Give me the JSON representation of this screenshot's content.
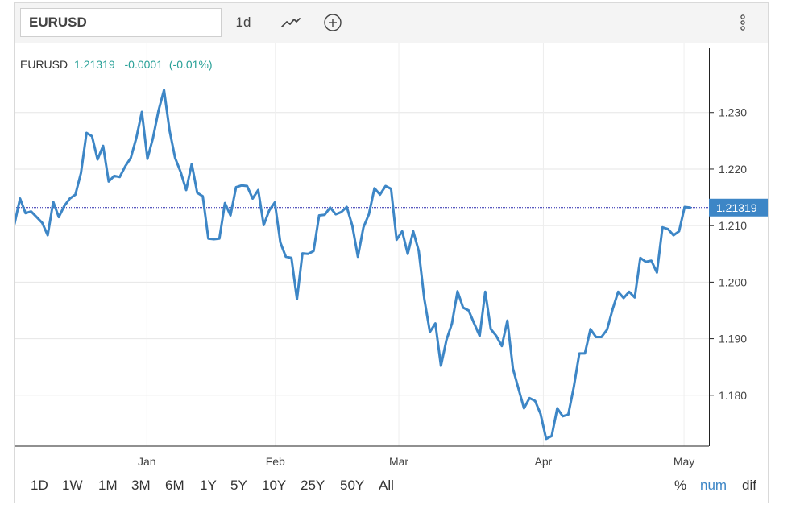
{
  "toolbar": {
    "symbol_value": "EURUSD",
    "interval_label": "1d",
    "chart_type_icon": "line-chart-icon",
    "compare_icon": "plus-circle-icon",
    "more_icon": "vertical-ellipsis-icon"
  },
  "legend": {
    "symbol": "EURUSD",
    "price": "1.21319",
    "change": "-0.0001",
    "change_pct": "(-0.01%)"
  },
  "price_tag": "1.21319",
  "ranges": [
    "1D",
    "1W",
    "1M",
    "3M",
    "6M",
    "1Y",
    "5Y",
    "10Y",
    "25Y",
    "50Y",
    "All"
  ],
  "modes": [
    "%",
    "num",
    "dif"
  ],
  "active_mode": "num",
  "colors": {
    "line": "#3d86c6",
    "up": "#2aa198",
    "tag_bg": "#3d86c6",
    "active_mode": "#3d86c6",
    "last_price_line": "#2222aa"
  },
  "chart_data": {
    "type": "line",
    "title": "",
    "xlabel": "",
    "ylabel": "",
    "ylim": [
      1.171,
      1.2415
    ],
    "yticks": [
      1.18,
      1.19,
      1.2,
      1.21,
      1.22,
      1.23
    ],
    "ytick_labels": [
      "1.180",
      "1.190",
      "1.200",
      "1.210",
      "1.220",
      "1.230"
    ],
    "xticks": [
      {
        "label": "Jan",
        "x": 23.9
      },
      {
        "label": "Feb",
        "x": 47.1
      },
      {
        "label": "Mar",
        "x": 69.4
      },
      {
        "label": "Apr",
        "x": 95.5
      },
      {
        "label": "May",
        "x": 120.9
      }
    ],
    "xlim": [
      0,
      125.4
    ],
    "grid": true,
    "last_value": 1.21319,
    "series": [
      {
        "values": [
          [
            0,
            1.2103
          ],
          [
            1,
            1.2148
          ],
          [
            2,
            1.2122
          ],
          [
            3,
            1.2125
          ],
          [
            4,
            1.2115
          ],
          [
            5,
            1.2105
          ],
          [
            6,
            1.2083
          ],
          [
            7,
            1.2142
          ],
          [
            8,
            1.2115
          ],
          [
            9,
            1.2135
          ],
          [
            10,
            1.2148
          ],
          [
            11,
            1.2155
          ],
          [
            12,
            1.2193
          ],
          [
            13,
            1.2264
          ],
          [
            14,
            1.2258
          ],
          [
            15,
            1.2217
          ],
          [
            16,
            1.2241
          ],
          [
            17,
            1.2178
          ],
          [
            18,
            1.2188
          ],
          [
            19,
            1.2186
          ],
          [
            20,
            1.2205
          ],
          [
            21,
            1.222
          ],
          [
            22,
            1.2255
          ],
          [
            23,
            1.2301
          ],
          [
            24,
            1.2218
          ],
          [
            25,
            1.2255
          ],
          [
            26,
            1.2303
          ],
          [
            27,
            1.234
          ],
          [
            28,
            1.2268
          ],
          [
            29,
            1.222
          ],
          [
            30,
            1.2195
          ],
          [
            31,
            1.2163
          ],
          [
            32,
            1.2209
          ],
          [
            33,
            1.2158
          ],
          [
            34,
            1.2152
          ],
          [
            35,
            1.2077
          ],
          [
            36,
            1.2076
          ],
          [
            37,
            1.2077
          ],
          [
            38,
            1.214
          ],
          [
            39,
            1.2118
          ],
          [
            40,
            1.2168
          ],
          [
            41,
            1.2171
          ],
          [
            42,
            1.217
          ],
          [
            43,
            1.2148
          ],
          [
            44,
            1.2163
          ],
          [
            45,
            1.2101
          ],
          [
            46,
            1.2127
          ],
          [
            47,
            1.2141
          ],
          [
            48,
            1.207
          ],
          [
            49,
            1.2045
          ],
          [
            50,
            1.2043
          ],
          [
            51,
            1.197
          ],
          [
            52,
            1.2051
          ],
          [
            53,
            1.205
          ],
          [
            54,
            1.2055
          ],
          [
            55,
            1.2118
          ],
          [
            56,
            1.2119
          ],
          [
            57,
            1.2132
          ],
          [
            58,
            1.212
          ],
          [
            59,
            1.2124
          ],
          [
            60,
            1.2133
          ],
          [
            61,
            1.21
          ],
          [
            62,
            1.2045
          ],
          [
            63,
            1.2097
          ],
          [
            64,
            1.212
          ],
          [
            65,
            1.2166
          ],
          [
            66,
            1.2155
          ],
          [
            67,
            1.217
          ],
          [
            68,
            1.2165
          ],
          [
            69,
            1.2075
          ],
          [
            70,
            1.209
          ],
          [
            71,
            1.205
          ],
          [
            72,
            1.209
          ],
          [
            73,
            1.2055
          ],
          [
            74,
            1.197
          ],
          [
            75,
            1.1912
          ],
          [
            76,
            1.1927
          ],
          [
            77,
            1.1852
          ],
          [
            78,
            1.1898
          ],
          [
            79,
            1.1927
          ],
          [
            80,
            1.1984
          ],
          [
            81,
            1.1955
          ],
          [
            82,
            1.195
          ],
          [
            83,
            1.1927
          ],
          [
            84,
            1.1905
          ],
          [
            85,
            1.1983
          ],
          [
            86,
            1.1917
          ],
          [
            87,
            1.1905
          ],
          [
            88,
            1.1887
          ],
          [
            89,
            1.1932
          ],
          [
            90,
            1.1847
          ],
          [
            91,
            1.1812
          ],
          [
            92,
            1.1777
          ],
          [
            93,
            1.1795
          ],
          [
            94,
            1.179
          ],
          [
            95,
            1.1767
          ],
          [
            96,
            1.1723
          ],
          [
            97,
            1.1728
          ],
          [
            98,
            1.1777
          ],
          [
            99,
            1.1763
          ],
          [
            100,
            1.1766
          ],
          [
            101,
            1.1815
          ],
          [
            102,
            1.1874
          ],
          [
            103,
            1.1874
          ],
          [
            104,
            1.1917
          ],
          [
            105,
            1.1903
          ],
          [
            106,
            1.1903
          ],
          [
            107,
            1.1916
          ],
          [
            108,
            1.1952
          ],
          [
            109,
            1.1983
          ],
          [
            110,
            1.1972
          ],
          [
            111,
            1.1983
          ],
          [
            112,
            1.1973
          ],
          [
            113,
            1.2043
          ],
          [
            114,
            1.2036
          ],
          [
            115,
            1.2038
          ],
          [
            116,
            1.2017
          ],
          [
            117,
            1.2097
          ],
          [
            118,
            1.2094
          ],
          [
            119,
            1.2083
          ],
          [
            120,
            1.209
          ],
          [
            121,
            1.2133
          ],
          [
            122,
            1.2132
          ]
        ]
      }
    ]
  }
}
